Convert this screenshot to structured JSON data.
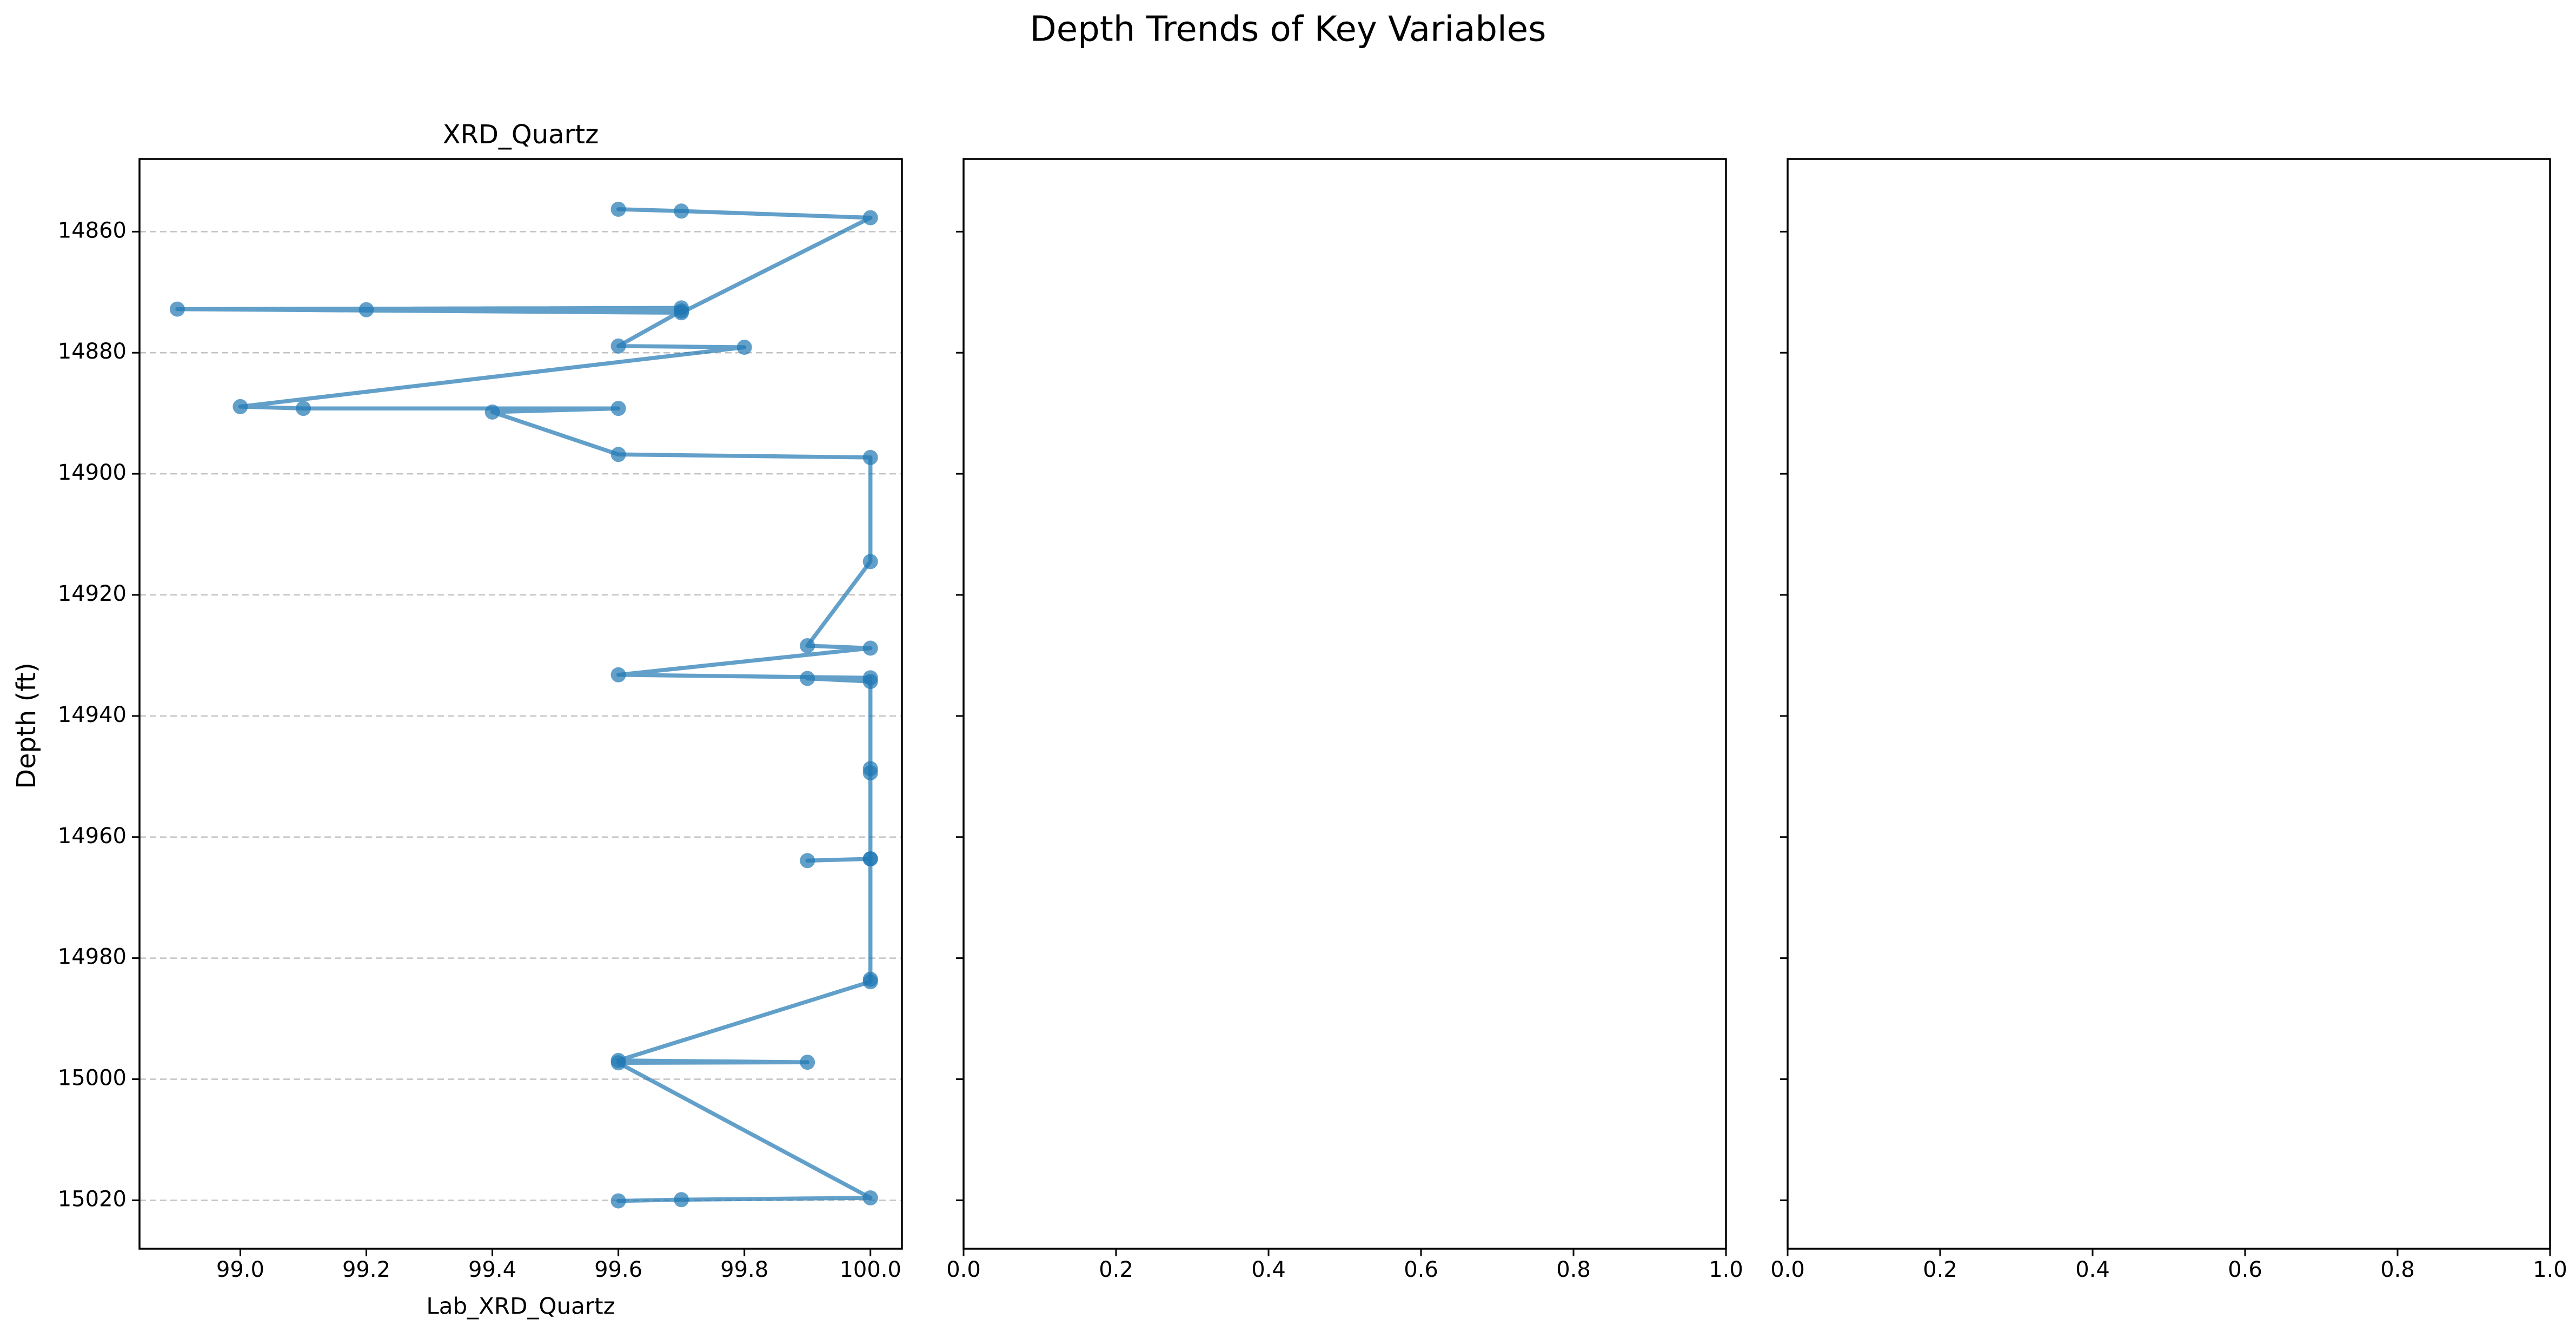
{
  "figure_title": "Depth Trends of Key Variables",
  "colors": {
    "series": "#1f77b4",
    "grid": "#b0b0b0",
    "axis": "#000000",
    "background": "#ffffff"
  },
  "chart_data": [
    {
      "type": "line",
      "title": "XRD_Quartz",
      "xlabel": "Lab_XRD_Quartz",
      "ylabel": "Depth (ft)",
      "xlim": [
        98.84,
        100.05
      ],
      "ylim": [
        15028,
        14848
      ],
      "y_inverted": true,
      "grid": "horizontal dashed",
      "x_ticks": [
        "99.0",
        "99.2",
        "99.4",
        "99.6",
        "99.8",
        "100.0"
      ],
      "y_ticks": [
        "14860",
        "14880",
        "14900",
        "14920",
        "14940",
        "14960",
        "14980",
        "15000",
        "15020"
      ],
      "series": [
        {
          "marker": "circle",
          "points": [
            {
              "x": 99.6,
              "y": 14856.3
            },
            {
              "x": 99.7,
              "y": 14856.6
            },
            {
              "x": 100.0,
              "y": 14857.7
            },
            {
              "x": 99.7,
              "y": 14873.4
            },
            {
              "x": 98.9,
              "y": 14872.8
            },
            {
              "x": 99.7,
              "y": 14872.6
            },
            {
              "x": 99.2,
              "y": 14872.9
            },
            {
              "x": 99.7,
              "y": 14873.1
            },
            {
              "x": 99.6,
              "y": 14878.9
            },
            {
              "x": 99.8,
              "y": 14879.1
            },
            {
              "x": 99.0,
              "y": 14888.9
            },
            {
              "x": 99.1,
              "y": 14889.2
            },
            {
              "x": 99.6,
              "y": 14889.2
            },
            {
              "x": 99.4,
              "y": 14889.8
            },
            {
              "x": 99.6,
              "y": 14896.8
            },
            {
              "x": 100.0,
              "y": 14897.3
            },
            {
              "x": 100.0,
              "y": 14914.5
            },
            {
              "x": 99.9,
              "y": 14928.4
            },
            {
              "x": 100.0,
              "y": 14928.8
            },
            {
              "x": 99.6,
              "y": 14933.2
            },
            {
              "x": 100.0,
              "y": 14933.7
            },
            {
              "x": 99.9,
              "y": 14933.8
            },
            {
              "x": 100.0,
              "y": 14934.3
            },
            {
              "x": 100.0,
              "y": 14948.7
            },
            {
              "x": 100.0,
              "y": 14949.4
            },
            {
              "x": 100.0,
              "y": 14963.6
            },
            {
              "x": 99.9,
              "y": 14963.9
            },
            {
              "x": 100.0,
              "y": 14963.6
            },
            {
              "x": 100.0,
              "y": 14983.5
            },
            {
              "x": 100.0,
              "y": 14983.9
            },
            {
              "x": 99.6,
              "y": 14996.9
            },
            {
              "x": 99.9,
              "y": 14997.2
            },
            {
              "x": 99.6,
              "y": 14997.3
            },
            {
              "x": 100.0,
              "y": 15019.6
            },
            {
              "x": 99.7,
              "y": 15019.9
            },
            {
              "x": 99.6,
              "y": 15020.1
            }
          ]
        }
      ]
    },
    {
      "type": "line",
      "title": "",
      "xlabel": "",
      "xlim": [
        0,
        1
      ],
      "x_ticks": [
        "0.0",
        "0.2",
        "0.4",
        "0.6",
        "0.8",
        "1.0"
      ],
      "shares_y": true,
      "series": []
    },
    {
      "type": "line",
      "title": "",
      "xlabel": "",
      "xlim": [
        0,
        1
      ],
      "x_ticks": [
        "0.0",
        "0.2",
        "0.4",
        "0.6",
        "0.8",
        "1.0"
      ],
      "shares_y": true,
      "series": []
    }
  ]
}
